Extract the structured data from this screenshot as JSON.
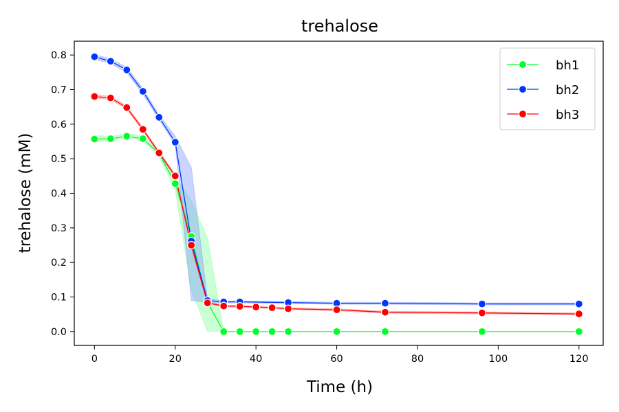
{
  "chart_data": {
    "type": "line",
    "title": "trehalose",
    "xlabel": "Time (h)",
    "ylabel": "trehalose (mM)",
    "xlim": [
      -5,
      126
    ],
    "ylim": [
      -0.04,
      0.84
    ],
    "xticks": [
      0,
      20,
      40,
      60,
      80,
      100,
      120
    ],
    "yticks": [
      0.0,
      0.1,
      0.2,
      0.3,
      0.4,
      0.5,
      0.6,
      0.7,
      0.8
    ],
    "ytick_labels": [
      "0.0",
      "0.1",
      "0.2",
      "0.3",
      "0.4",
      "0.5",
      "0.6",
      "0.7",
      "0.8"
    ],
    "legend_position": "top-right",
    "grid": false,
    "series": [
      {
        "name": "bh1",
        "color": "#00ff2a",
        "band_color": "#7dff95",
        "x": [
          0,
          4,
          8,
          12,
          16,
          20,
          24,
          28,
          32,
          36,
          40,
          44,
          48,
          60,
          72,
          96,
          120
        ],
        "y": [
          0.557,
          0.558,
          0.565,
          0.558,
          0.515,
          0.428,
          0.275,
          0.085,
          0.0,
          0.0,
          0.0,
          0.0,
          0.0,
          0.0,
          0.0,
          0.0,
          0.0
        ],
        "ci_low": [
          0.548,
          0.552,
          0.56,
          0.552,
          0.505,
          0.41,
          0.12,
          0.0,
          0.0,
          0.0,
          0.0,
          0.0,
          0.0,
          0.0,
          0.0,
          0.0,
          0.0
        ],
        "ci_high": [
          0.567,
          0.565,
          0.572,
          0.567,
          0.525,
          0.446,
          0.38,
          0.27,
          0.0,
          0.0,
          0.0,
          0.0,
          0.0,
          0.0,
          0.0,
          0.0,
          0.0
        ]
      },
      {
        "name": "bh2",
        "color": "#0037ff",
        "band_color": "#7b96ff",
        "x": [
          0,
          4,
          8,
          12,
          16,
          20,
          24,
          28,
          32,
          36,
          48,
          60,
          72,
          96,
          120
        ],
        "y": [
          0.795,
          0.782,
          0.757,
          0.695,
          0.62,
          0.548,
          0.262,
          0.09,
          0.086,
          0.086,
          0.084,
          0.082,
          0.082,
          0.08,
          0.08
        ],
        "ci_low": [
          0.788,
          0.775,
          0.749,
          0.687,
          0.613,
          0.54,
          0.09,
          0.085,
          0.083,
          0.083,
          0.081,
          0.079,
          0.079,
          0.077,
          0.077
        ],
        "ci_high": [
          0.802,
          0.789,
          0.765,
          0.703,
          0.627,
          0.565,
          0.475,
          0.095,
          0.089,
          0.089,
          0.087,
          0.085,
          0.085,
          0.083,
          0.083
        ]
      },
      {
        "name": "bh3",
        "color": "#ff0000",
        "band_color": "#ff8080",
        "x": [
          0,
          4,
          8,
          12,
          16,
          20,
          24,
          28,
          32,
          36,
          40,
          44,
          48,
          60,
          72,
          96,
          120
        ],
        "y": [
          0.68,
          0.676,
          0.648,
          0.585,
          0.517,
          0.45,
          0.25,
          0.083,
          0.074,
          0.073,
          0.071,
          0.069,
          0.066,
          0.063,
          0.056,
          0.054,
          0.051
        ],
        "ci_low": [
          0.675,
          0.671,
          0.643,
          0.58,
          0.512,
          0.445,
          0.24,
          0.08,
          0.071,
          0.07,
          0.068,
          0.066,
          0.063,
          0.06,
          0.053,
          0.051,
          0.048
        ],
        "ci_high": [
          0.685,
          0.681,
          0.653,
          0.59,
          0.522,
          0.455,
          0.26,
          0.086,
          0.077,
          0.076,
          0.074,
          0.072,
          0.069,
          0.066,
          0.059,
          0.057,
          0.054
        ]
      }
    ]
  }
}
